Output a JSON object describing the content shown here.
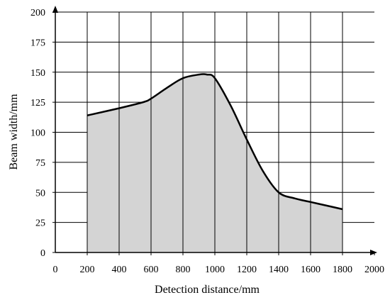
{
  "chart_data": {
    "type": "area",
    "xlabel": "Detection distance/mm",
    "ylabel": "Beam width/mm",
    "xlim": [
      0,
      2000
    ],
    "ylim": [
      0,
      200
    ],
    "xticks": [
      "0",
      "200",
      "400",
      "600",
      "800",
      "1000",
      "1200",
      "1400",
      "1600",
      "1800",
      "2000"
    ],
    "yticks": [
      "0",
      "25",
      "50",
      "75",
      "100",
      "125",
      "150",
      "175",
      "200"
    ],
    "grid": true,
    "series": [
      {
        "x": [
          200,
          400,
          550,
          600,
          700,
          800,
          900,
          950,
          1000,
          1100,
          1200,
          1300,
          1400,
          1500,
          1600,
          1700,
          1800
        ],
        "values": [
          114,
          120,
          125,
          128,
          137,
          145,
          148,
          148,
          145,
          122,
          94,
          68,
          50,
          45,
          42,
          39,
          36
        ]
      }
    ],
    "colors": {
      "fill": "#d4d4d4",
      "line": "#000000",
      "grid": "#000000"
    }
  }
}
